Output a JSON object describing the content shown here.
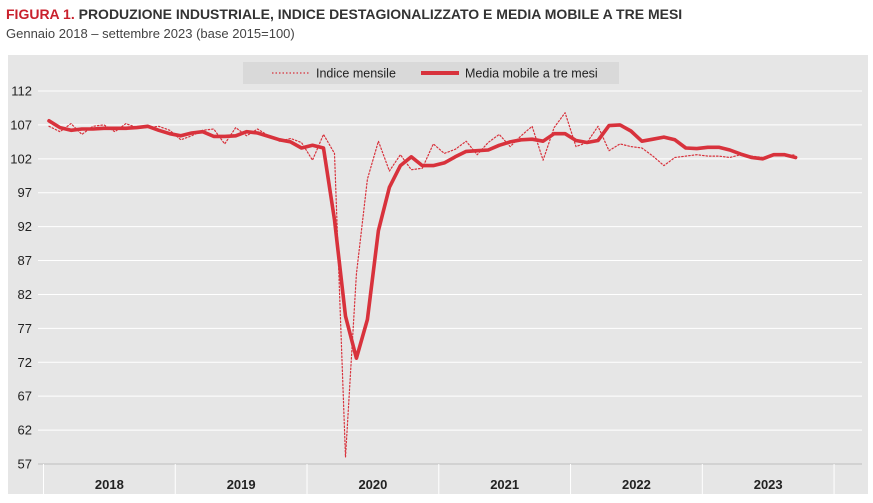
{
  "header": {
    "title_lead": "FIGURA 1.",
    "title_rest": "PRODUZIONE INDUSTRIALE, INDICE DESTAGIONALIZZATO E MEDIA MOBILE A TRE MESI",
    "subtitle": "Gennaio 2018 – settembre 2023 (base 2015=100)"
  },
  "colors": {
    "plot_background": "#e6e6e6",
    "gridline": "#ffffff",
    "series_red": "#d8323c",
    "title_accent": "#c9202c"
  },
  "chart_data": {
    "type": "line",
    "title": "PRODUZIONE INDUSTRIALE, INDICE DESTAGIONALIZZATO E MEDIA MOBILE A TRE MESI",
    "subtitle": "Gennaio 2018 – settembre 2023 (base 2015=100)",
    "xlabel": "",
    "ylabel": "",
    "x_unit": "month",
    "x_start": "2018-01",
    "x_end": "2023-09",
    "year_labels": [
      "2018",
      "2019",
      "2020",
      "2021",
      "2022",
      "2023"
    ],
    "ylim": [
      57,
      112
    ],
    "yticks": [
      57,
      62,
      67,
      72,
      77,
      82,
      87,
      92,
      97,
      102,
      107,
      112
    ],
    "grid": "horizontal",
    "legend": "top-center",
    "series": [
      {
        "name": "Indice mensile",
        "style": "dotted",
        "values": [
          106.8,
          106.0,
          107.2,
          105.6,
          106.8,
          107.0,
          106.0,
          107.2,
          106.6,
          106.6,
          106.8,
          106.2,
          104.8,
          105.4,
          106.2,
          106.4,
          104.2,
          106.6,
          105.4,
          106.4,
          105.4,
          104.6,
          105.0,
          104.4,
          101.8,
          105.6,
          102.8,
          58.0,
          85.0,
          99.0,
          104.6,
          100.2,
          102.6,
          100.4,
          100.6,
          104.2,
          102.8,
          103.4,
          104.6,
          102.6,
          104.4,
          105.6,
          103.8,
          105.4,
          106.8,
          101.8,
          106.6,
          108.8,
          103.8,
          104.4,
          106.8,
          103.2,
          104.2,
          103.8,
          103.6,
          102.4,
          101.0,
          102.2,
          102.4,
          102.6,
          102.4,
          102.4,
          102.2,
          102.6,
          102.4,
          102.2,
          102.6,
          102.4,
          102.6
        ]
      },
      {
        "name": "Media mobile a tre mesi",
        "style": "solid",
        "values": [
          107.6,
          106.6,
          106.2,
          106.4,
          106.4,
          106.5,
          106.5,
          106.5,
          106.6,
          106.8,
          106.2,
          105.7,
          105.4,
          105.8,
          106.0,
          105.3,
          105.3,
          105.4,
          106.0,
          105.8,
          105.3,
          104.8,
          104.5,
          103.6,
          104.0,
          103.6,
          93.0,
          78.8,
          72.6,
          78.3,
          91.4,
          97.8,
          101.0,
          102.3,
          101.0,
          101.0,
          101.4,
          102.3,
          103.1,
          103.2,
          103.3,
          104.0,
          104.5,
          104.8,
          104.9,
          104.6,
          105.7,
          105.7,
          104.7,
          104.4,
          104.7,
          106.9,
          107.0,
          106.1,
          104.6,
          104.9,
          105.2,
          104.8,
          103.6,
          103.5,
          103.7,
          103.7,
          103.3,
          102.7,
          102.2,
          102.0,
          102.6,
          102.6,
          102.2
        ]
      }
    ]
  }
}
